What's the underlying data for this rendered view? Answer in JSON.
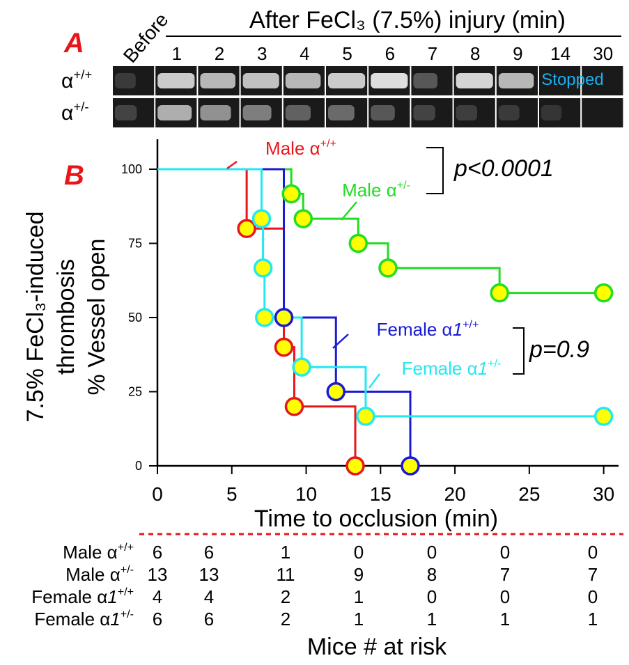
{
  "panel_a": {
    "label": "A",
    "header": "After FeCl₃ (7.5%) injury (min)",
    "before_label": "Before",
    "time_labels": [
      "1",
      "2",
      "3",
      "4",
      "5",
      "6",
      "7",
      "8",
      "9",
      "14",
      "30"
    ],
    "rows": [
      {
        "label_base": "α",
        "label_sup": "+/+",
        "intensity": [
          0.1,
          0.85,
          0.75,
          0.8,
          0.75,
          0.85,
          0.95,
          0.25,
          0.9,
          0.75,
          0.0,
          0.0
        ]
      },
      {
        "label_base": "α",
        "label_sup": "+/-",
        "intensity": [
          0.15,
          0.7,
          0.55,
          0.45,
          0.3,
          0.35,
          0.25,
          0.15,
          0.12,
          0.1,
          0.08,
          0.05
        ]
      }
    ],
    "stopped_text": "Stopped",
    "stopped_color": "#1ab0f0"
  },
  "panel_b_label": "B",
  "chart_data": {
    "type": "line",
    "subtype": "kaplan-meier step",
    "ylabel_line1": "7.5% FeCl₃-induced",
    "ylabel_line2": "thrombosis",
    "ylabel_line3": "% Vessel open",
    "xlabel": "Time to occlusion (min)",
    "xlim": [
      0,
      31
    ],
    "ylim": [
      0,
      100
    ],
    "xticks": [
      0,
      5,
      10,
      15,
      20,
      25,
      30
    ],
    "yticks": [
      0,
      25,
      50,
      75,
      100
    ],
    "series": [
      {
        "name_base": "Male α",
        "name_italic": "",
        "name_sup": "+/+",
        "color": "#e8161b",
        "steps": [
          [
            0,
            100
          ],
          [
            6,
            80
          ],
          [
            8.5,
            40
          ],
          [
            9.2,
            20
          ],
          [
            13.3,
            0
          ]
        ],
        "markers": [
          [
            6,
            80
          ],
          [
            8.5,
            40
          ],
          [
            9.2,
            20
          ],
          [
            13.3,
            0
          ]
        ]
      },
      {
        "name_base": "Male α",
        "name_italic": "",
        "name_sup": "+/-",
        "color": "#22dd22",
        "steps": [
          [
            0,
            100
          ],
          [
            9,
            91.7
          ],
          [
            9.8,
            83.3
          ],
          [
            13.5,
            75
          ],
          [
            15.5,
            66.7
          ],
          [
            23,
            58.3
          ],
          [
            30,
            58.3
          ]
        ],
        "markers": [
          [
            9,
            91.7
          ],
          [
            9.8,
            83.3
          ],
          [
            13.5,
            75
          ],
          [
            15.5,
            66.7
          ],
          [
            23,
            58.3
          ],
          [
            30,
            58.3
          ]
        ]
      },
      {
        "name_base": "Female α",
        "name_italic": "1",
        "name_sup": "+/+",
        "color": "#1a1ad6",
        "steps": [
          [
            0,
            100
          ],
          [
            8.5,
            50
          ],
          [
            12,
            25
          ],
          [
            17,
            0
          ]
        ],
        "markers": [
          [
            8.5,
            50
          ],
          [
            12,
            25
          ],
          [
            17,
            0
          ]
        ]
      },
      {
        "name_base": "Female α",
        "name_italic": "1",
        "name_sup": "+/-",
        "color": "#22e8f0",
        "steps": [
          [
            0,
            100
          ],
          [
            7,
            83.3
          ],
          [
            7.1,
            66.7
          ],
          [
            7.2,
            50
          ],
          [
            9.7,
            33.3
          ],
          [
            14,
            16.7
          ],
          [
            30,
            16.7
          ]
        ],
        "markers": [
          [
            7,
            83.3
          ],
          [
            7.1,
            66.7
          ],
          [
            7.2,
            50
          ],
          [
            9.7,
            33.3
          ],
          [
            14,
            16.7
          ],
          [
            30,
            16.7
          ]
        ]
      }
    ],
    "pvalues": [
      {
        "text": "p<0.0001"
      },
      {
        "text": "p=0.9"
      }
    ],
    "marker_fill": "#ffff00"
  },
  "risk_table": {
    "title": "Mice # at risk",
    "rows": [
      {
        "label_base": "Male α",
        "label_italic": "",
        "label_sup": "+/+",
        "values": [
          "6",
          "6",
          "1",
          "0",
          "0",
          "0",
          "0"
        ]
      },
      {
        "label_base": "Male α",
        "label_italic": "",
        "label_sup": "+/-",
        "values": [
          "13",
          "13",
          "11",
          "9",
          "8",
          "7",
          "7"
        ]
      },
      {
        "label_base": "Female α",
        "label_italic": "1",
        "label_sup": "+/+",
        "values": [
          "4",
          "4",
          "2",
          "1",
          "0",
          "0",
          "0"
        ]
      },
      {
        "label_base": "Female α",
        "label_italic": "1",
        "label_sup": "+/-",
        "values": [
          "6",
          "6",
          "2",
          "1",
          "1",
          "1",
          "1"
        ]
      }
    ],
    "divider_color": "#e8161b"
  }
}
